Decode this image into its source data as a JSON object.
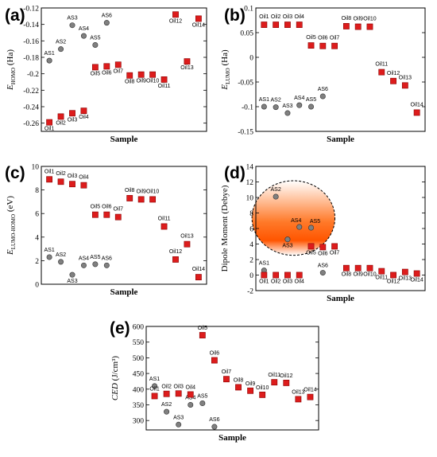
{
  "chart_data": [
    {
      "panel": "(a)",
      "type": "scatter",
      "xlabel": "Sample",
      "ylabel_main": "E",
      "ylabel_sub": "HOMO",
      "ylabel_unit": " (Ha)",
      "ylim": [
        -0.27,
        -0.12
      ],
      "yticks": [
        -0.26,
        -0.24,
        -0.22,
        -0.2,
        -0.18,
        -0.16,
        -0.14,
        -0.12
      ],
      "ytick_labels": [
        "-0.26",
        "-0.24",
        "-0.22",
        "-0.2",
        "-0.18",
        "-0.16",
        "-0.14",
        "-0.12"
      ],
      "series": [
        {
          "name": "AS",
          "marker": "circle",
          "color": "#808080",
          "points": [
            {
              "label": "AS1",
              "x": 1,
              "y": -0.184
            },
            {
              "label": "AS2",
              "x": 2,
              "y": -0.17
            },
            {
              "label": "AS3",
              "x": 3,
              "y": -0.141
            },
            {
              "label": "AS4",
              "x": 4,
              "y": -0.154
            },
            {
              "label": "AS5",
              "x": 5,
              "y": -0.165
            },
            {
              "label": "AS6",
              "x": 6,
              "y": -0.138
            }
          ]
        },
        {
          "name": "Oil",
          "marker": "square",
          "color": "#dd1c1c",
          "points": [
            {
              "label": "Oil1",
              "x": 1,
              "y": -0.259
            },
            {
              "label": "Oil2",
              "x": 2,
              "y": -0.252
            },
            {
              "label": "Oil3",
              "x": 3,
              "y": -0.248
            },
            {
              "label": "Oil4",
              "x": 4,
              "y": -0.245
            },
            {
              "label": "Oil5",
              "x": 5,
              "y": -0.192
            },
            {
              "label": "Oil6",
              "x": 6,
              "y": -0.191
            },
            {
              "label": "Oil7",
              "x": 7,
              "y": -0.189
            },
            {
              "label": "Oil8",
              "x": 8,
              "y": -0.202
            },
            {
              "label": "Oil9",
              "x": 9,
              "y": -0.201
            },
            {
              "label": "Oil10",
              "x": 10,
              "y": -0.201
            },
            {
              "label": "Oil11",
              "x": 11,
              "y": -0.207
            },
            {
              "label": "Oil12",
              "x": 12,
              "y": -0.128
            },
            {
              "label": "Oil13",
              "x": 13,
              "y": -0.185
            },
            {
              "label": "Oil14",
              "x": 14,
              "y": -0.133
            }
          ]
        }
      ]
    },
    {
      "panel": "(b)",
      "type": "scatter",
      "xlabel": "Sample",
      "ylabel_main": "E",
      "ylabel_sub": "LUMO",
      "ylabel_unit": " (Ha)",
      "ylim": [
        -0.15,
        0.1
      ],
      "yticks": [
        -0.15,
        -0.1,
        -0.05,
        0,
        0.05,
        0.1
      ],
      "ytick_labels": [
        "-0.15",
        "-0.1",
        "-0.05",
        "0",
        "0.05",
        "0.1"
      ],
      "series": [
        {
          "name": "AS",
          "marker": "circle",
          "color": "#808080",
          "points": [
            {
              "label": "AS1",
              "x": 1,
              "y": -0.1
            },
            {
              "label": "AS2",
              "x": 2,
              "y": -0.101
            },
            {
              "label": "AS3",
              "x": 3,
              "y": -0.113
            },
            {
              "label": "AS4",
              "x": 4,
              "y": -0.097
            },
            {
              "label": "AS5",
              "x": 5,
              "y": -0.1
            },
            {
              "label": "AS6",
              "x": 6,
              "y": -0.079
            }
          ]
        },
        {
          "name": "Oil",
          "marker": "square",
          "color": "#dd1c1c",
          "points": [
            {
              "label": "Oil1",
              "x": 1,
              "y": 0.066
            },
            {
              "label": "Oil2",
              "x": 2,
              "y": 0.066
            },
            {
              "label": "Oil3",
              "x": 3,
              "y": 0.066
            },
            {
              "label": "Oil4",
              "x": 4,
              "y": 0.066
            },
            {
              "label": "Oil5",
              "x": 5,
              "y": 0.024
            },
            {
              "label": "Oil6",
              "x": 6,
              "y": 0.023
            },
            {
              "label": "Oil7",
              "x": 7,
              "y": 0.023
            },
            {
              "label": "Oil8",
              "x": 8,
              "y": 0.063
            },
            {
              "label": "Oil9",
              "x": 9,
              "y": 0.062
            },
            {
              "label": "Oil10",
              "x": 10,
              "y": 0.062
            },
            {
              "label": "Oil11",
              "x": 11,
              "y": -0.03
            },
            {
              "label": "Oil12",
              "x": 12,
              "y": -0.048
            },
            {
              "label": "Oil13",
              "x": 13,
              "y": -0.057
            },
            {
              "label": "Oil14",
              "x": 14,
              "y": -0.112
            }
          ]
        }
      ]
    },
    {
      "panel": "(c)",
      "type": "scatter",
      "xlabel": "Sample",
      "ylabel_main": "E",
      "ylabel_sub": "LUMO-HOMO",
      "ylabel_unit": " (eV)",
      "ylim": [
        0,
        10
      ],
      "yticks": [
        0,
        2,
        4,
        6,
        8,
        10
      ],
      "ytick_labels": [
        "0",
        "2",
        "4",
        "6",
        "8",
        "10"
      ],
      "series": [
        {
          "name": "AS",
          "marker": "circle",
          "color": "#808080",
          "points": [
            {
              "label": "AS1",
              "x": 1,
              "y": 2.3
            },
            {
              "label": "AS2",
              "x": 2,
              "y": 1.9
            },
            {
              "label": "AS3",
              "x": 3,
              "y": 0.8
            },
            {
              "label": "AS4",
              "x": 4,
              "y": 1.6
            },
            {
              "label": "AS5",
              "x": 5,
              "y": 1.7
            },
            {
              "label": "AS6",
              "x": 6,
              "y": 1.6
            }
          ]
        },
        {
          "name": "Oil",
          "marker": "square",
          "color": "#dd1c1c",
          "points": [
            {
              "label": "Oil1",
              "x": 1,
              "y": 8.9
            },
            {
              "label": "Oil2",
              "x": 2,
              "y": 8.7
            },
            {
              "label": "Oil3",
              "x": 3,
              "y": 8.5
            },
            {
              "label": "Oil4",
              "x": 4,
              "y": 8.4
            },
            {
              "label": "Oil5",
              "x": 5,
              "y": 5.9
            },
            {
              "label": "Oil6",
              "x": 6,
              "y": 5.9
            },
            {
              "label": "Oil7",
              "x": 7,
              "y": 5.7
            },
            {
              "label": "Oil8",
              "x": 8,
              "y": 7.3
            },
            {
              "label": "Oil9",
              "x": 9,
              "y": 7.2
            },
            {
              "label": "Oil10",
              "x": 10,
              "y": 7.2
            },
            {
              "label": "Oil11",
              "x": 11,
              "y": 4.9
            },
            {
              "label": "Oil12",
              "x": 12,
              "y": 2.1
            },
            {
              "label": "Oil13",
              "x": 13,
              "y": 3.4
            },
            {
              "label": "Oil14",
              "x": 14,
              "y": 0.6
            }
          ]
        }
      ]
    },
    {
      "panel": "(d)",
      "type": "scatter",
      "xlabel": "Sample",
      "ylabel_main": "Dipole Moment (Debye)",
      "ylabel_sub": "",
      "ylabel_unit": "",
      "ylim": [
        -2,
        14
      ],
      "yticks": [
        -2,
        0,
        2,
        4,
        6,
        8,
        10,
        12,
        14
      ],
      "ytick_labels": [
        "-2",
        "0",
        "2",
        "4",
        "6",
        "8",
        "10",
        "12",
        "14"
      ],
      "highlight": "ellipse around AS2, AS3, AS4, AS5",
      "series": [
        {
          "name": "AS",
          "marker": "circle",
          "color": "#808080",
          "points": [
            {
              "label": "AS1",
              "x": 1,
              "y": 0.6
            },
            {
              "label": "AS2",
              "x": 2,
              "y": 10.1
            },
            {
              "label": "AS3",
              "x": 3,
              "y": 4.6
            },
            {
              "label": "AS4",
              "x": 4,
              "y": 6.2
            },
            {
              "label": "AS5",
              "x": 5,
              "y": 6.1
            },
            {
              "label": "AS6",
              "x": 6,
              "y": 0.3
            }
          ]
        },
        {
          "name": "Oil",
          "marker": "square",
          "color": "#dd1c1c",
          "points": [
            {
              "label": "Oil1",
              "x": 1,
              "y": 0.0
            },
            {
              "label": "Oil2",
              "x": 2,
              "y": 0.0
            },
            {
              "label": "Oil3",
              "x": 3,
              "y": 0.0
            },
            {
              "label": "Oil4",
              "x": 4,
              "y": 0.0
            },
            {
              "label": "Oil5",
              "x": 5,
              "y": 3.7
            },
            {
              "label": "Oil6",
              "x": 6,
              "y": 3.6
            },
            {
              "label": "Oil7",
              "x": 7,
              "y": 3.7
            },
            {
              "label": "Oil8",
              "x": 8,
              "y": 0.9
            },
            {
              "label": "Oil9",
              "x": 9,
              "y": 0.9
            },
            {
              "label": "Oil10",
              "x": 10,
              "y": 0.9
            },
            {
              "label": "Oil11",
              "x": 11,
              "y": 0.5
            },
            {
              "label": "Oil12",
              "x": 12,
              "y": 0.0
            },
            {
              "label": "Oil13",
              "x": 13,
              "y": 0.4
            },
            {
              "label": "Oil14",
              "x": 14,
              "y": 0.2
            }
          ]
        }
      ]
    },
    {
      "panel": "(e)",
      "type": "scatter",
      "xlabel": "Sample",
      "ylabel_main": "CED",
      "ylabel_sub": "",
      "ylabel_unit": " (J/cm³)",
      "ylim": [
        270,
        600
      ],
      "yticks": [
        300,
        350,
        400,
        450,
        500,
        550,
        600
      ],
      "ytick_labels": [
        "300",
        "350",
        "400",
        "450",
        "500",
        "550",
        "600"
      ],
      "series": [
        {
          "name": "AS",
          "marker": "circle",
          "color": "#808080",
          "points": [
            {
              "label": "AS1",
              "x": 1,
              "y": 410
            },
            {
              "label": "AS2",
              "x": 2,
              "y": 328
            },
            {
              "label": "AS3",
              "x": 3,
              "y": 287
            },
            {
              "label": "AS4",
              "x": 4,
              "y": 350
            },
            {
              "label": "AS5",
              "x": 5,
              "y": 355
            },
            {
              "label": "AS6",
              "x": 6,
              "y": 280
            }
          ]
        },
        {
          "name": "Oil",
          "marker": "square",
          "color": "#dd1c1c",
          "points": [
            {
              "label": "Oil1",
              "x": 1,
              "y": 378
            },
            {
              "label": "Oil2",
              "x": 2,
              "y": 385
            },
            {
              "label": "Oil3",
              "x": 3,
              "y": 386
            },
            {
              "label": "Oil4",
              "x": 4,
              "y": 383
            },
            {
              "label": "Oil5",
              "x": 5,
              "y": 572
            },
            {
              "label": "Oil6",
              "x": 6,
              "y": 492
            },
            {
              "label": "Oil7",
              "x": 7,
              "y": 432
            },
            {
              "label": "Oil8",
              "x": 8,
              "y": 406
            },
            {
              "label": "Oil9",
              "x": 9,
              "y": 395
            },
            {
              "label": "Oil10",
              "x": 10,
              "y": 382
            },
            {
              "label": "Oil11",
              "x": 11,
              "y": 422
            },
            {
              "label": "Oil12",
              "x": 12,
              "y": 420
            },
            {
              "label": "Oil13",
              "x": 13,
              "y": 368
            },
            {
              "label": "Oil14",
              "x": 14,
              "y": 375
            }
          ]
        }
      ]
    }
  ]
}
